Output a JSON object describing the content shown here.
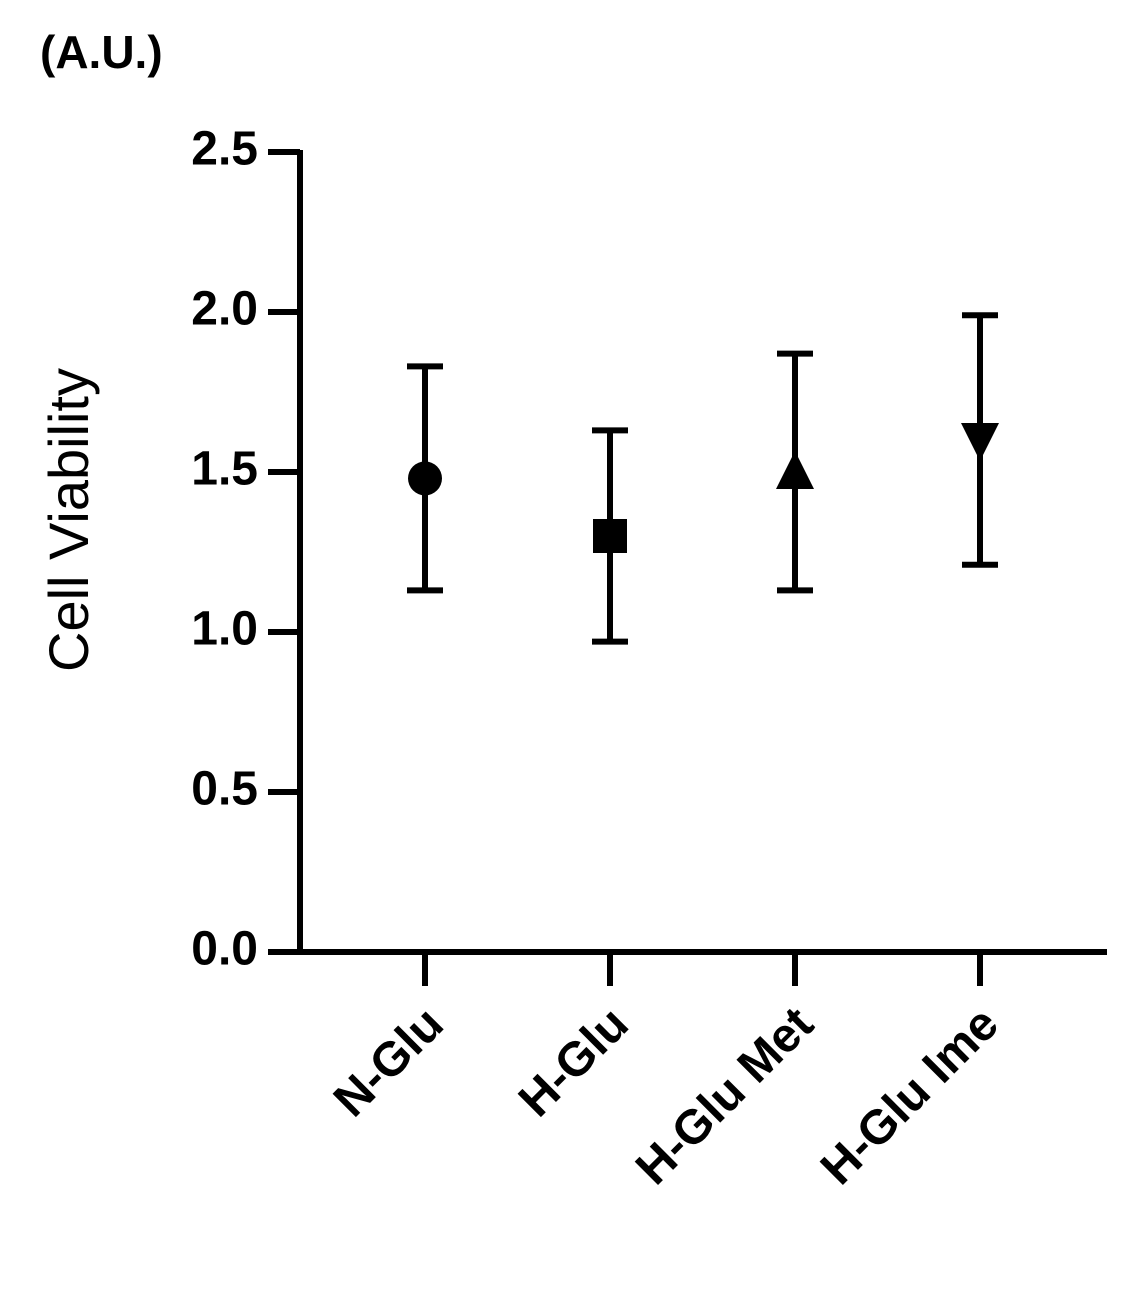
{
  "chart_data": {
    "type": "scatter",
    "unit_label": "(A.U.)",
    "y_label": "Cell Viability",
    "categories": [
      "N-Glu",
      "H-Glu",
      "H-Glu Met",
      "H-Glu Ime"
    ],
    "values": [
      1.48,
      1.3,
      1.5,
      1.6
    ],
    "errors": [
      0.35,
      0.33,
      0.37,
      0.39
    ],
    "markers": [
      "circle",
      "square",
      "triangle-up",
      "triangle-down"
    ],
    "color": "#000000",
    "ylim": [
      0,
      2.5
    ],
    "yticks": [
      {
        "value": 0,
        "label": "0.0"
      },
      0.5,
      {
        "value": 1,
        "label": "1.0"
      },
      1.5,
      {
        "value": 2,
        "label": "2.0"
      },
      2.5
    ]
  }
}
